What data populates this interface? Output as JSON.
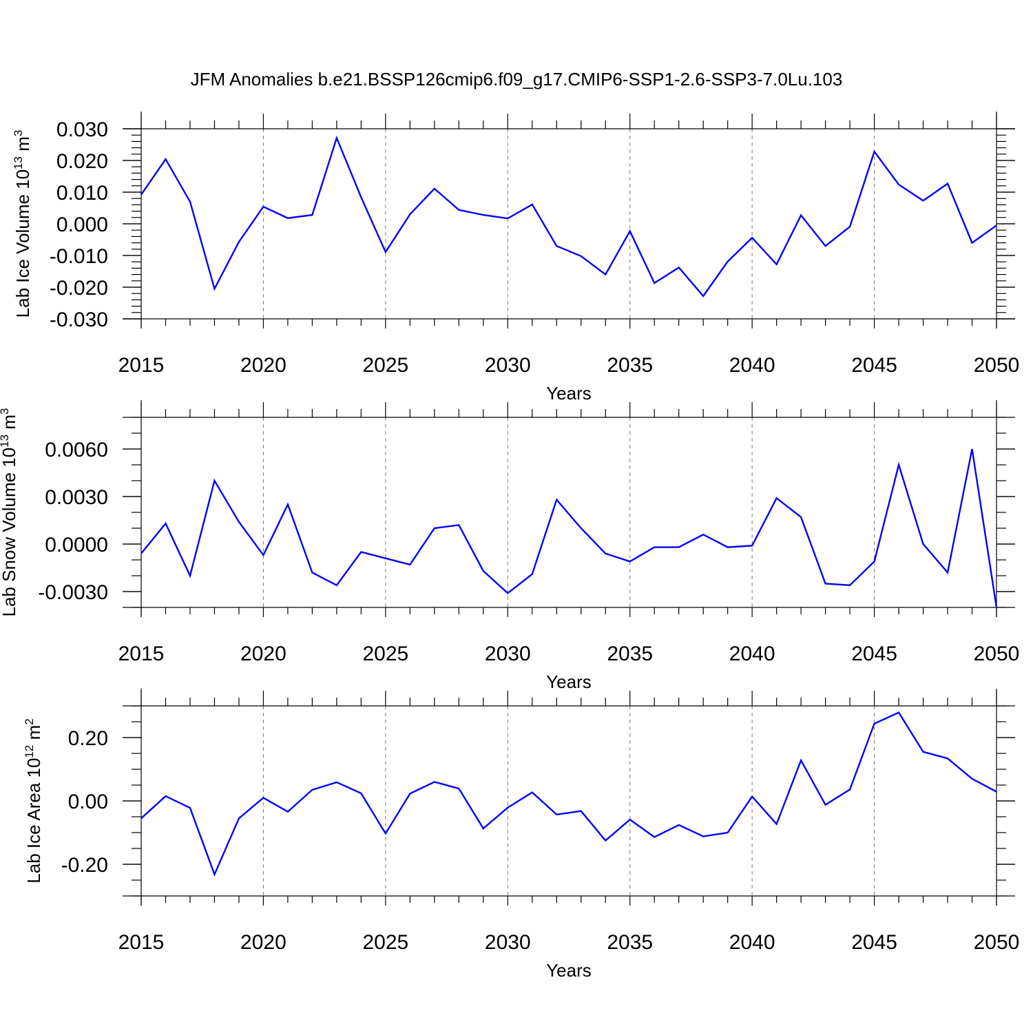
{
  "figure": {
    "title": "JFM Anomalies b.e21.BSSP126cmip6.f09_g17.CMIP6-SSP1-2.6-SSP3-7.0Lu.103"
  },
  "colors": {
    "series": "#0000ff",
    "axis": "#000000",
    "grid": "#777777"
  },
  "chart_data": [
    {
      "type": "line",
      "title": "JFM Anomalies b.e21.BSSP126cmip6.f09_g17.CMIP6-SSP1-2.6-SSP3-7.0Lu.103",
      "ylabel_main": "Lab Ice Volume 10",
      "ylabel_exp": "13",
      "ylabel_unit": " m",
      "ylabel_unit_exp": "3",
      "xlabel": "Years",
      "xlim": [
        2015,
        2050
      ],
      "ylim": [
        -0.03,
        0.03
      ],
      "yticks": [
        -0.03,
        -0.02,
        -0.01,
        0.0,
        0.01,
        0.02,
        0.03
      ],
      "ytick_labels": [
        "-0.030",
        "-0.020",
        "-0.010",
        "0.000",
        "0.010",
        "0.020",
        "0.030"
      ],
      "yminor_step": 0.002,
      "xticks": [
        2015,
        2020,
        2025,
        2030,
        2035,
        2040,
        2045,
        2050
      ],
      "xtick_labels": [
        "2015",
        "2020",
        "2025",
        "2030",
        "2035",
        "2040",
        "2045",
        "2050"
      ],
      "grid_x": [
        2020,
        2025,
        2030,
        2035,
        2040,
        2045
      ],
      "series": [
        {
          "name": "Lab Ice Volume",
          "x": [
            2015,
            2016,
            2017,
            2018,
            2019,
            2020,
            2021,
            2022,
            2023,
            2024,
            2025,
            2026,
            2027,
            2028,
            2029,
            2030,
            2031,
            2032,
            2033,
            2034,
            2035,
            2036,
            2037,
            2038,
            2039,
            2040,
            2041,
            2042,
            2043,
            2044,
            2045,
            2046,
            2047,
            2048,
            2049,
            2050
          ],
          "values": [
            0.0092,
            0.0204,
            0.007,
            -0.0205,
            -0.0057,
            0.0054,
            0.0018,
            0.0028,
            0.0271,
            0.0084,
            -0.0089,
            0.003,
            0.0111,
            0.0044,
            0.0028,
            0.0017,
            0.0061,
            -0.007,
            -0.0102,
            -0.016,
            -0.0023,
            -0.0187,
            -0.0138,
            -0.0228,
            -0.0119,
            -0.0044,
            -0.0128,
            0.0027,
            -0.007,
            -0.0009,
            0.0228,
            0.0124,
            0.0073,
            0.0127,
            -0.006,
            -0.0005
          ]
        }
      ]
    },
    {
      "type": "line",
      "ylabel_main": "Lab Snow Volume 10",
      "ylabel_exp": "13",
      "ylabel_unit": " m",
      "ylabel_unit_exp": "3",
      "xlabel": "Years",
      "xlim": [
        2015,
        2050
      ],
      "ylim": [
        -0.004,
        0.008
      ],
      "yticks": [
        -0.003,
        0.0,
        0.003,
        0.006
      ],
      "ytick_labels": [
        "-0.0030",
        "0.0000",
        "0.0030",
        "0.0060"
      ],
      "yminor_step": 0.001,
      "xticks": [
        2015,
        2020,
        2025,
        2030,
        2035,
        2040,
        2045,
        2050
      ],
      "xtick_labels": [
        "2015",
        "2020",
        "2025",
        "2030",
        "2035",
        "2040",
        "2045",
        "2050"
      ],
      "grid_x": [
        2020,
        2025,
        2030,
        2035,
        2040,
        2045
      ],
      "series": [
        {
          "name": "Lab Snow Volume",
          "x": [
            2015,
            2016,
            2017,
            2018,
            2019,
            2020,
            2021,
            2022,
            2023,
            2024,
            2025,
            2026,
            2027,
            2028,
            2029,
            2030,
            2031,
            2032,
            2033,
            2034,
            2035,
            2036,
            2037,
            2038,
            2039,
            2040,
            2041,
            2042,
            2043,
            2044,
            2045,
            2046,
            2047,
            2048,
            2049,
            2050
          ],
          "values": [
            -0.0006,
            0.0013,
            -0.002,
            0.004,
            0.0014,
            -0.0007,
            0.0025,
            -0.0018,
            -0.0026,
            -0.0005,
            -0.0009,
            -0.0013,
            0.001,
            0.0012,
            -0.0017,
            -0.0031,
            -0.0019,
            0.0028,
            0.001,
            -0.0006,
            -0.0011,
            -0.0002,
            -0.0002,
            0.0006,
            -0.0002,
            -0.0001,
            0.0029,
            0.0017,
            -0.0025,
            -0.0026,
            -0.0011,
            0.005,
            0.0,
            -0.0018,
            0.006,
            -0.004
          ]
        }
      ]
    },
    {
      "type": "line",
      "ylabel_main": "Lab Ice Area 10",
      "ylabel_exp": "12",
      "ylabel_unit": " m",
      "ylabel_unit_exp": "2",
      "xlabel": "Years",
      "xlim": [
        2015,
        2050
      ],
      "ylim": [
        -0.3,
        0.3
      ],
      "yticks": [
        -0.2,
        0.0,
        0.2
      ],
      "ytick_labels": [
        "-0.20",
        "0.00",
        "0.20"
      ],
      "yminor_step": 0.05,
      "xticks": [
        2015,
        2020,
        2025,
        2030,
        2035,
        2040,
        2045,
        2050
      ],
      "xtick_labels": [
        "2015",
        "2020",
        "2025",
        "2030",
        "2035",
        "2040",
        "2045",
        "2050"
      ],
      "grid_x": [
        2020,
        2025,
        2030,
        2035,
        2040,
        2045
      ],
      "series": [
        {
          "name": "Lab Ice Area",
          "x": [
            2015,
            2016,
            2017,
            2018,
            2019,
            2020,
            2021,
            2022,
            2023,
            2024,
            2025,
            2026,
            2027,
            2028,
            2029,
            2030,
            2031,
            2032,
            2033,
            2034,
            2035,
            2036,
            2037,
            2038,
            2039,
            2040,
            2041,
            2042,
            2043,
            2044,
            2045,
            2046,
            2047,
            2048,
            2049,
            2050
          ],
          "values": [
            -0.055,
            0.015,
            -0.022,
            -0.232,
            -0.055,
            0.01,
            -0.034,
            0.035,
            0.059,
            0.024,
            -0.103,
            0.023,
            0.06,
            0.039,
            -0.087,
            -0.021,
            0.027,
            -0.043,
            -0.032,
            -0.125,
            -0.059,
            -0.114,
            -0.076,
            -0.112,
            -0.1,
            0.014,
            -0.073,
            0.128,
            -0.012,
            0.036,
            0.244,
            0.279,
            0.155,
            0.134,
            0.07,
            0.029
          ]
        }
      ]
    }
  ]
}
